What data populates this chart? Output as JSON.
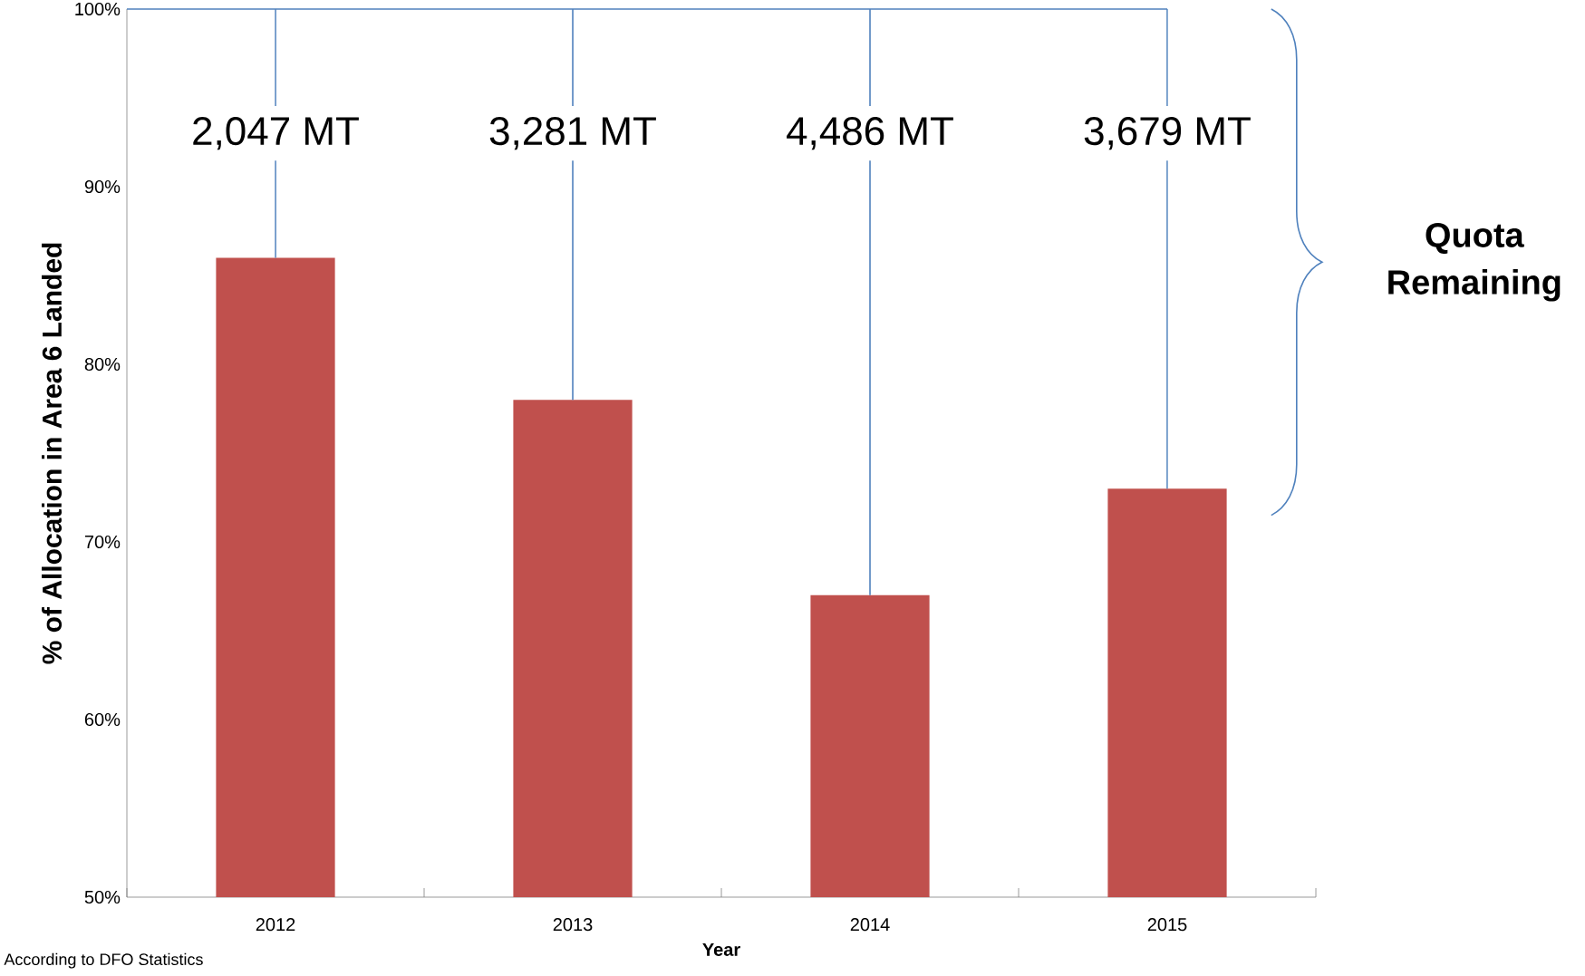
{
  "chart_data": {
    "type": "bar",
    "xlabel": "Year",
    "ylabel": "% of Allocation in Area 6 Landed",
    "categories": [
      "2012",
      "2013",
      "2014",
      "2015"
    ],
    "values": [
      86,
      78,
      67,
      73
    ],
    "color": "#c0504d",
    "ylim": [
      50,
      100
    ],
    "yticks": [
      {
        "value": 50,
        "label": "50%"
      },
      {
        "value": 60,
        "label": "60%"
      },
      {
        "value": 70,
        "label": "70%"
      },
      {
        "value": 80,
        "label": "80%"
      },
      {
        "value": 90,
        "label": "90%"
      },
      {
        "value": 100,
        "label": "100%"
      }
    ],
    "ref_lines": [
      {
        "axis": "y",
        "value": 100,
        "color": "#4f81bd"
      }
    ],
    "errors": [
      [
        86,
        100
      ],
      [
        78,
        100
      ],
      [
        67,
        100
      ],
      [
        73,
        100
      ]
    ],
    "annotations": [
      "2,047 MT",
      "3,281 MT",
      "4,486 MT",
      "3,679 MT",
      "Quota Remaining",
      "According to DFO Statistics"
    ]
  }
}
